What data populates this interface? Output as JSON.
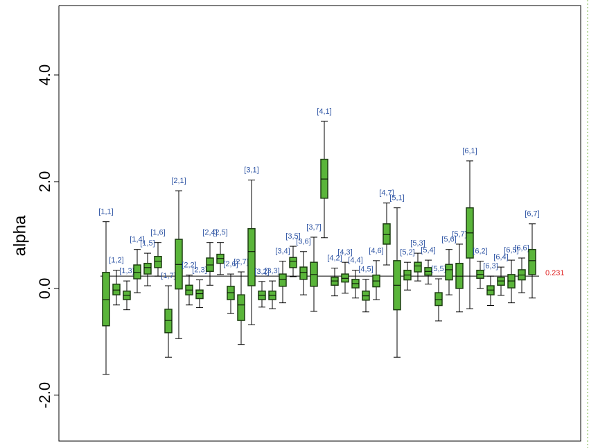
{
  "chart_data": {
    "type": "box",
    "y_label": "alpha",
    "ylim": [
      -2.86,
      5.3
    ],
    "yticks": [
      {
        "value": -2,
        "label": "-2.0"
      },
      {
        "value": 0,
        "label": "0.0"
      },
      {
        "value": 2,
        "label": "2.0"
      },
      {
        "value": 4,
        "label": "4.0"
      }
    ],
    "reference_line": 0.231,
    "reference_color": "#e02020",
    "box_color": "#5ab53a",
    "boxes": [
      {
        "label": "[1,1]",
        "low": -1.61,
        "q1": -0.7,
        "median": -0.21,
        "q3": 0.3,
        "high": 1.25
      },
      {
        "label": "[1,2]",
        "low": -0.31,
        "q1": -0.12,
        "median": -0.03,
        "q3": 0.08,
        "high": 0.34
      },
      {
        "label": "[1,3]",
        "low": -0.4,
        "q1": -0.21,
        "median": -0.13,
        "q3": -0.05,
        "high": 0.14
      },
      {
        "label": "[1,4]",
        "low": -0.08,
        "q1": 0.18,
        "median": 0.3,
        "q3": 0.44,
        "high": 0.73
      },
      {
        "label": "[1,5]",
        "low": 0.05,
        "q1": 0.27,
        "median": 0.39,
        "q3": 0.47,
        "high": 0.66
      },
      {
        "label": "[1,6]",
        "low": 0.23,
        "q1": 0.39,
        "median": 0.51,
        "q3": 0.6,
        "high": 0.86
      },
      {
        "label": "[1,7]",
        "low": -1.29,
        "q1": -0.83,
        "median": -0.6,
        "q3": -0.39,
        "high": 0.05
      },
      {
        "label": "[2,1]",
        "low": -0.94,
        "q1": -0.01,
        "median": 0.45,
        "q3": 0.92,
        "high": 1.83
      },
      {
        "label": "[2,2]",
        "low": -0.31,
        "q1": -0.12,
        "median": -0.03,
        "q3": 0.06,
        "high": 0.25
      },
      {
        "label": "[2,3]",
        "low": -0.36,
        "q1": -0.19,
        "median": -0.1,
        "q3": -0.03,
        "high": 0.16
      },
      {
        "label": "[2,4]",
        "low": 0.06,
        "q1": 0.32,
        "median": 0.44,
        "q3": 0.57,
        "high": 0.86
      },
      {
        "label": "[2,5]",
        "low": 0.26,
        "q1": 0.47,
        "median": 0.56,
        "q3": 0.64,
        "high": 0.86
      },
      {
        "label": "[2,6]",
        "low": -0.47,
        "q1": -0.21,
        "median": -0.08,
        "q3": 0.04,
        "high": 0.27
      },
      {
        "label": "[2,7]",
        "low": -1.05,
        "q1": -0.6,
        "median": -0.31,
        "q3": -0.12,
        "high": 0.31
      },
      {
        "label": "[3,1]",
        "low": -0.68,
        "q1": 0.05,
        "median": 0.69,
        "q3": 1.12,
        "high": 2.03
      },
      {
        "label": "[3,2]",
        "low": -0.35,
        "q1": -0.21,
        "median": -0.13,
        "q3": -0.05,
        "high": 0.13
      },
      {
        "label": "[3,3]",
        "low": -0.38,
        "q1": -0.21,
        "median": -0.13,
        "q3": -0.05,
        "high": 0.14
      },
      {
        "label": "[3,4]",
        "low": -0.27,
        "q1": 0.04,
        "median": 0.17,
        "q3": 0.27,
        "high": 0.51
      },
      {
        "label": "[3,5]",
        "low": 0.22,
        "q1": 0.39,
        "median": 0.51,
        "q3": 0.58,
        "high": 0.79
      },
      {
        "label": "[3,6]",
        "low": -0.12,
        "q1": 0.17,
        "median": 0.3,
        "q3": 0.4,
        "high": 0.69
      },
      {
        "label": "[3,7]",
        "low": -0.43,
        "q1": 0.04,
        "median": 0.26,
        "q3": 0.49,
        "high": 0.96
      },
      {
        "label": "[4,1]",
        "low": 0.95,
        "q1": 1.69,
        "median": 2.05,
        "q3": 2.42,
        "high": 3.13
      },
      {
        "label": "[4,2]",
        "low": -0.14,
        "q1": 0.06,
        "median": 0.14,
        "q3": 0.21,
        "high": 0.38
      },
      {
        "label": "[4,3]",
        "low": -0.09,
        "q1": 0.12,
        "median": 0.19,
        "q3": 0.27,
        "high": 0.49
      },
      {
        "label": "[4,4]",
        "low": -0.18,
        "q1": 0.01,
        "median": 0.09,
        "q3": 0.17,
        "high": 0.34
      },
      {
        "label": "[4,5]",
        "low": -0.44,
        "q1": -0.22,
        "median": -0.14,
        "q3": -0.05,
        "high": 0.17
      },
      {
        "label": "[4,6]",
        "low": -0.21,
        "q1": 0.03,
        "median": 0.14,
        "q3": 0.25,
        "high": 0.52
      },
      {
        "label": "[4,7]",
        "low": 0.44,
        "q1": 0.83,
        "median": 1.01,
        "q3": 1.21,
        "high": 1.6
      },
      {
        "label": "[5,1]",
        "low": -1.29,
        "q1": -0.4,
        "median": 0.06,
        "q3": 0.52,
        "high": 1.51
      },
      {
        "label": "[5,2]",
        "low": -0.03,
        "q1": 0.16,
        "median": 0.25,
        "q3": 0.34,
        "high": 0.49
      },
      {
        "label": "[5,3]",
        "low": 0.14,
        "q1": 0.31,
        "median": 0.42,
        "q3": 0.49,
        "high": 0.66
      },
      {
        "label": "[5,4]",
        "low": 0.08,
        "q1": 0.25,
        "median": 0.32,
        "q3": 0.39,
        "high": 0.53
      },
      {
        "label": "[5,5]",
        "low": -0.61,
        "q1": -0.32,
        "median": -0.21,
        "q3": -0.08,
        "high": 0.18
      },
      {
        "label": "[5,6]",
        "low": -0.12,
        "q1": 0.16,
        "median": 0.35,
        "q3": 0.45,
        "high": 0.73
      },
      {
        "label": "[5,7]",
        "low": -0.44,
        "q1": 0.0,
        "median": 0.23,
        "q3": 0.47,
        "high": 0.83
      },
      {
        "label": "[6,1]",
        "low": -0.38,
        "q1": 0.57,
        "median": 1.04,
        "q3": 1.51,
        "high": 2.39
      },
      {
        "label": "[6,2]",
        "low": 0.0,
        "q1": 0.19,
        "median": 0.26,
        "q3": 0.34,
        "high": 0.51
      },
      {
        "label": "[6,3]",
        "low": -0.32,
        "q1": -0.12,
        "median": -0.03,
        "q3": 0.05,
        "high": 0.23
      },
      {
        "label": "[6,4]",
        "low": -0.13,
        "q1": 0.06,
        "median": 0.14,
        "q3": 0.21,
        "high": 0.4
      },
      {
        "label": "[6,5]",
        "low": -0.27,
        "q1": 0.01,
        "median": 0.14,
        "q3": 0.26,
        "high": 0.53
      },
      {
        "label": "[6,6]",
        "low": -0.08,
        "q1": 0.16,
        "median": 0.25,
        "q3": 0.35,
        "high": 0.57
      },
      {
        "label": "[6,7]",
        "low": -0.18,
        "q1": 0.26,
        "median": 0.52,
        "q3": 0.73,
        "high": 1.21
      }
    ]
  }
}
